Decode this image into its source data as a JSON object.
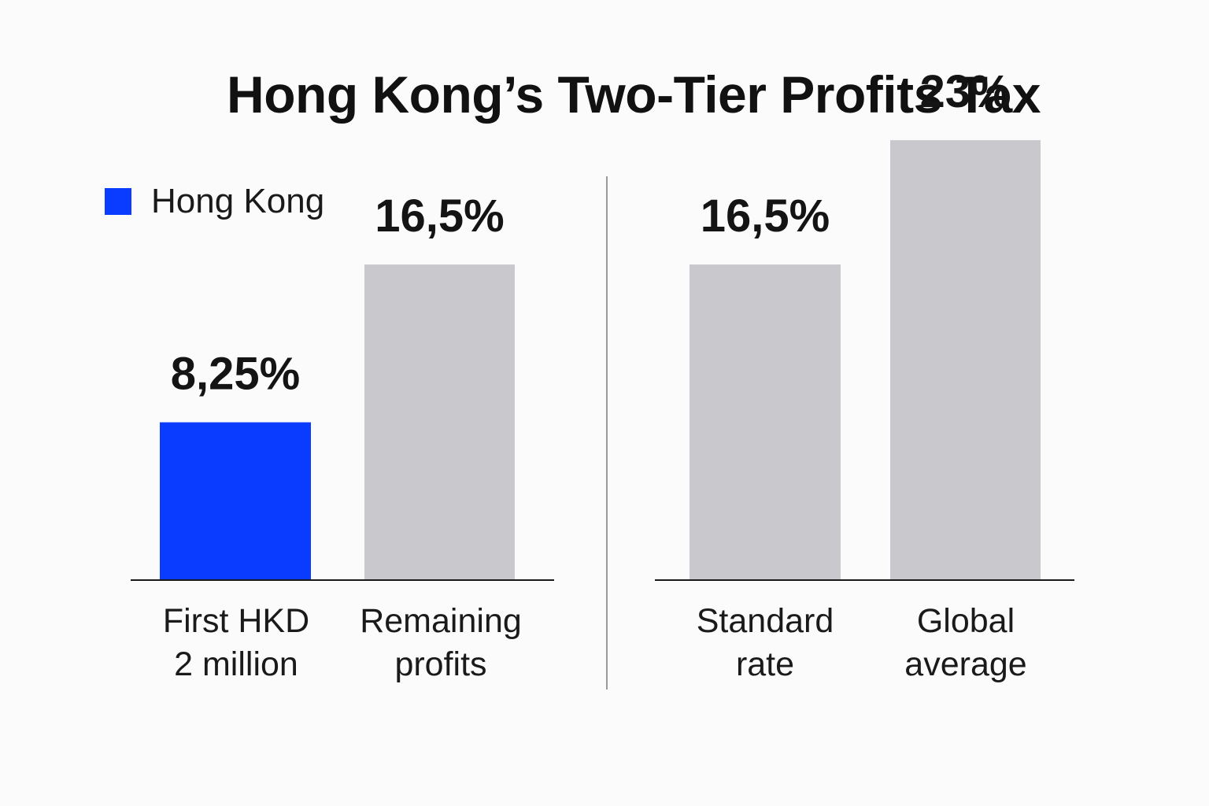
{
  "title": "Hong Kong’s Two-Tier Profits Tax",
  "legend": {
    "label": "Hong Kong",
    "color": "#0a3cff"
  },
  "colors": {
    "highlight": "#0a3cff",
    "neutral": "#c9c9cd",
    "axis": "#1a1a1a",
    "divider": "#9a9a9a"
  },
  "chart_data": [
    {
      "type": "bar",
      "title": "",
      "categories": [
        "First HKD 2 million",
        "Remaining profits"
      ],
      "category_lines": [
        [
          "First HKD",
          "2 million"
        ],
        [
          "Remaining",
          "profits"
        ]
      ],
      "values": [
        8.25,
        16.5
      ],
      "value_labels": [
        "8,25%",
        "16,5%"
      ],
      "highlight": [
        true,
        false
      ],
      "xlabel": "",
      "ylabel": "",
      "ylim": [
        0,
        29
      ]
    },
    {
      "type": "bar",
      "title": "",
      "categories": [
        "Standard rate",
        "Global average"
      ],
      "category_lines": [
        [
          "Standard",
          "rate"
        ],
        [
          "Global",
          "average"
        ]
      ],
      "values": [
        16.5,
        23
      ],
      "value_labels": [
        "16,5%",
        "23%"
      ],
      "highlight": [
        false,
        false
      ],
      "xlabel": "",
      "ylabel": "",
      "ylim": [
        0,
        29
      ]
    }
  ]
}
